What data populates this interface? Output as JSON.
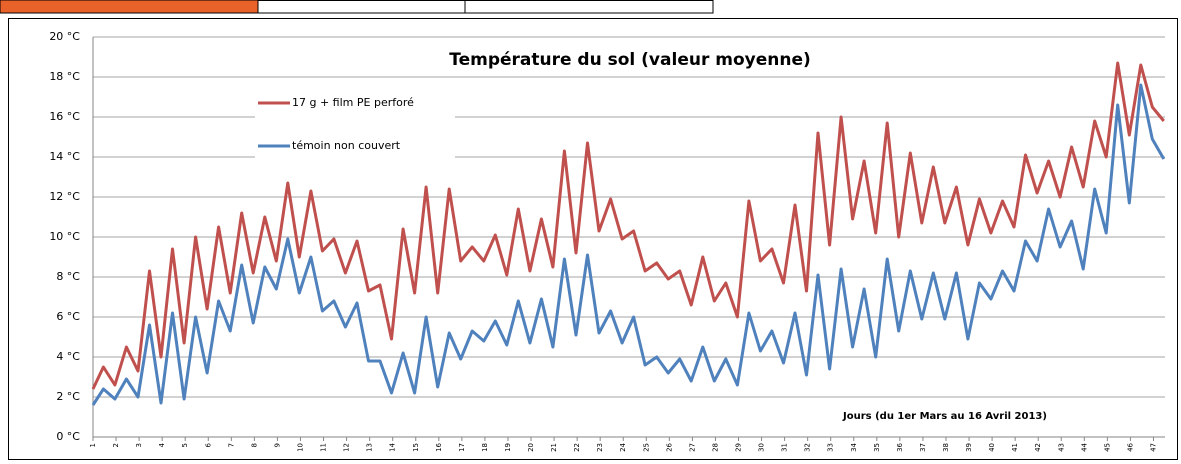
{
  "chart_data": {
    "type": "line",
    "title": "Température du sol (valeur moyenne)",
    "annotation": "Jours  (du 1er Mars au 16 Avril 2013)",
    "x": [
      1,
      1.45,
      1.95,
      2.45,
      2.95,
      3.45,
      3.95,
      4.45,
      4.95,
      5.45,
      5.95,
      6.45,
      6.95,
      7.45,
      7.95,
      8.45,
      8.95,
      9.45,
      9.95,
      10.45,
      10.95,
      11.45,
      11.95,
      12.45,
      12.95,
      13.45,
      13.95,
      14.45,
      14.95,
      15.45,
      15.95,
      16.45,
      16.95,
      17.45,
      17.95,
      18.45,
      18.95,
      19.45,
      19.95,
      20.45,
      20.95,
      21.45,
      21.95,
      22.45,
      22.95,
      23.45,
      23.95,
      24.45,
      24.95,
      25.45,
      25.95,
      26.45,
      26.95,
      27.45,
      27.95,
      28.45,
      28.95,
      29.45,
      29.95,
      30.45,
      30.95,
      31.45,
      31.95,
      32.45,
      32.95,
      33.45,
      33.95,
      34.45,
      34.95,
      35.45,
      35.95,
      36.45,
      36.95,
      37.45,
      37.95,
      38.45,
      38.95,
      39.45,
      39.95,
      40.45,
      40.95,
      41.45,
      41.95,
      42.45,
      42.95,
      43.45,
      43.95,
      44.45,
      44.95,
      45.45,
      45.95,
      46.45,
      46.95,
      47.45
    ],
    "series": [
      {
        "name": "17 g + film PE perforé",
        "color": "#c0504d",
        "values": [
          2.4,
          3.5,
          2.6,
          4.5,
          3.3,
          8.3,
          4.0,
          9.4,
          4.7,
          10.0,
          6.4,
          10.5,
          7.2,
          11.2,
          8.2,
          11.0,
          8.8,
          12.7,
          9.0,
          12.3,
          9.3,
          9.9,
          8.2,
          9.8,
          7.3,
          7.6,
          4.9,
          10.4,
          7.2,
          12.5,
          7.2,
          12.4,
          8.8,
          9.5,
          8.8,
          10.1,
          8.1,
          11.4,
          8.3,
          10.9,
          8.5,
          14.3,
          9.2,
          14.7,
          10.3,
          11.9,
          9.9,
          10.3,
          8.3,
          8.7,
          7.9,
          8.3,
          6.6,
          9.0,
          6.8,
          7.7,
          6.0,
          11.8,
          8.8,
          9.4,
          7.7,
          11.6,
          7.3,
          15.2,
          9.6,
          16.0,
          10.9,
          13.8,
          10.2,
          15.7,
          10.0,
          14.2,
          10.7,
          13.5,
          10.7,
          12.5,
          9.6,
          11.9,
          10.2,
          11.8,
          10.5,
          14.1,
          12.2,
          13.8,
          12.0,
          14.5,
          12.5,
          15.8,
          14.0,
          18.7,
          15.1,
          18.6,
          16.5,
          15.8
        ]
      },
      {
        "name": "témoin non couvert",
        "color": "#4f81bd",
        "values": [
          1.6,
          2.4,
          1.9,
          2.9,
          2.0,
          5.6,
          1.7,
          6.2,
          1.9,
          6.0,
          3.2,
          6.8,
          5.3,
          8.6,
          5.7,
          8.5,
          7.4,
          9.9,
          7.2,
          9.0,
          6.3,
          6.8,
          5.5,
          6.7,
          3.8,
          3.8,
          2.2,
          4.2,
          2.2,
          6.0,
          2.5,
          5.2,
          3.9,
          5.3,
          4.8,
          5.8,
          4.6,
          6.8,
          4.7,
          6.9,
          4.5,
          8.9,
          5.1,
          9.1,
          5.2,
          6.3,
          4.7,
          6.0,
          3.6,
          4.0,
          3.2,
          3.9,
          2.8,
          4.5,
          2.8,
          3.9,
          2.6,
          6.2,
          4.3,
          5.3,
          3.7,
          6.2,
          3.1,
          8.1,
          3.4,
          8.4,
          4.5,
          7.4,
          4.0,
          8.9,
          5.3,
          8.3,
          5.9,
          8.2,
          5.9,
          8.2,
          4.9,
          7.7,
          6.9,
          8.3,
          7.3,
          9.8,
          8.8,
          11.4,
          9.5,
          10.8,
          8.4,
          12.4,
          10.2,
          16.6,
          11.7,
          17.6,
          14.9,
          13.9
        ]
      }
    ],
    "xlim": [
      1,
      47.5
    ],
    "xticks": [
      1,
      2,
      3,
      4,
      5,
      6,
      7,
      8,
      9,
      10,
      11,
      12,
      13,
      14,
      15,
      16,
      17,
      18,
      19,
      20,
      21,
      22,
      23,
      24,
      25,
      26,
      27,
      28,
      29,
      30,
      31,
      32,
      33,
      34,
      35,
      36,
      37,
      38,
      39,
      40,
      41,
      42,
      43,
      44,
      45,
      46,
      47
    ],
    "ylim": [
      0,
      20
    ],
    "yticks": [
      {
        "value": 0,
        "label": "0 °C"
      },
      {
        "value": 2,
        "label": "2 °C"
      },
      {
        "value": 4,
        "label": "4 °C"
      },
      {
        "value": 6,
        "label": "6 °C"
      },
      {
        "value": 8,
        "label": "8 °C"
      },
      {
        "value": 10,
        "label": "10 °C"
      },
      {
        "value": 12,
        "label": "12 °C"
      },
      {
        "value": 14,
        "label": "14 °C"
      },
      {
        "value": 16,
        "label": "16 °C"
      },
      {
        "value": 18,
        "label": "18 °C"
      },
      {
        "value": 20,
        "label": "20 °C"
      }
    ],
    "grid": true
  }
}
